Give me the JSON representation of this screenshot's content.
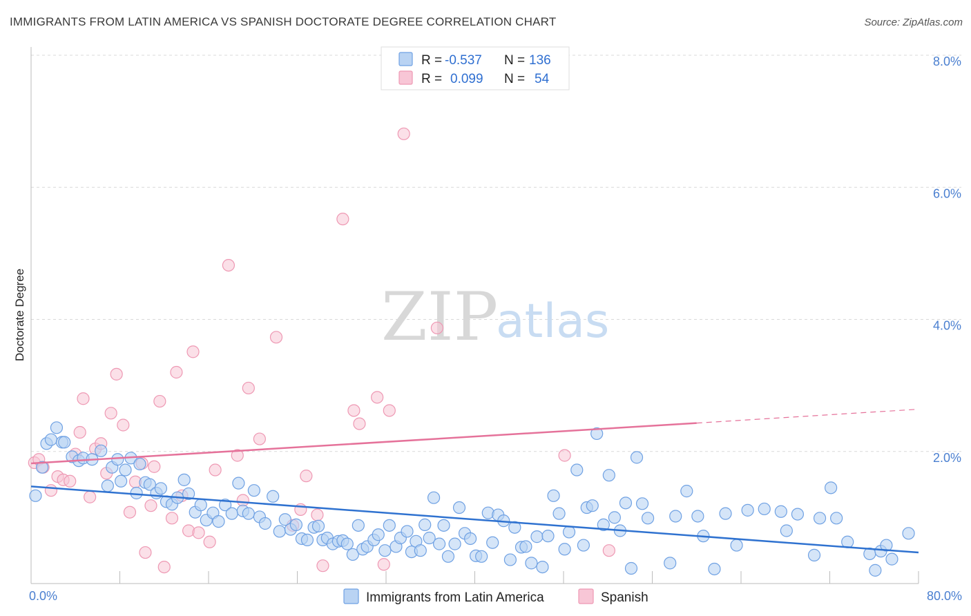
{
  "header": {
    "title": "IMMIGRANTS FROM LATIN AMERICA VS SPANISH DOCTORATE DEGREE CORRELATION CHART",
    "source": "Source: ZipAtlas.com"
  },
  "watermark": {
    "zip": "ZIP",
    "atlas": "atlas"
  },
  "stats": {
    "r_label": "R =",
    "n_label": "N =",
    "rows": [
      {
        "r": "-0.537",
        "n": "136",
        "color": "#7eaee8"
      },
      {
        "r": "0.099",
        "n": "54",
        "color": "#f2a7bf"
      }
    ]
  },
  "colors": {
    "blue_fill": "#b9d3f3",
    "blue_stroke": "#6fa1e3",
    "blue_line": "#2f72d0",
    "pink_fill": "#f8c6d6",
    "pink_stroke": "#ee98b3",
    "pink_line": "#e5729a",
    "grid": "#d8d8d8",
    "axis": "#bbbbbb",
    "tick_text": "#4a7fd0"
  },
  "chart_data": {
    "type": "scatter",
    "title": "IMMIGRANTS FROM LATIN AMERICA VS SPANISH DOCTORATE DEGREE CORRELATION CHART",
    "xlabel": "",
    "ylabel": "Doctorate Degree",
    "xlim": [
      0,
      80
    ],
    "ylim": [
      0,
      8.0
    ],
    "x_tick_labels": [
      "0.0%",
      "80.0%"
    ],
    "y_ticks": [
      2,
      4,
      6,
      8
    ],
    "y_tick_labels": [
      "2.0%",
      "4.0%",
      "6.0%",
      "8.0%"
    ],
    "grid": true,
    "legend_position": "bottom-center",
    "series": [
      {
        "name": "Immigrants from Latin America",
        "color": "#6fa1e3",
        "trend": {
          "x": [
            0,
            80
          ],
          "y": [
            1.47,
            0.47
          ]
        },
        "points": [
          [
            0.4,
            1.33
          ],
          [
            1.0,
            1.76
          ],
          [
            1.4,
            2.12
          ],
          [
            1.8,
            2.18
          ],
          [
            2.3,
            2.36
          ],
          [
            2.8,
            2.14
          ],
          [
            3.0,
            2.14
          ],
          [
            3.7,
            1.92
          ],
          [
            4.3,
            1.86
          ],
          [
            4.7,
            1.9
          ],
          [
            5.5,
            1.88
          ],
          [
            6.3,
            2.01
          ],
          [
            6.9,
            1.48
          ],
          [
            7.3,
            1.76
          ],
          [
            7.8,
            1.88
          ],
          [
            8.1,
            1.55
          ],
          [
            8.5,
            1.72
          ],
          [
            9.0,
            1.9
          ],
          [
            9.5,
            1.37
          ],
          [
            9.8,
            1.81
          ],
          [
            10.3,
            1.53
          ],
          [
            10.7,
            1.5
          ],
          [
            11.3,
            1.37
          ],
          [
            11.7,
            1.44
          ],
          [
            12.2,
            1.24
          ],
          [
            12.7,
            1.2
          ],
          [
            13.2,
            1.3
          ],
          [
            13.8,
            1.57
          ],
          [
            14.2,
            1.36
          ],
          [
            14.8,
            1.08
          ],
          [
            15.3,
            1.19
          ],
          [
            15.8,
            0.96
          ],
          [
            16.4,
            1.07
          ],
          [
            16.9,
            0.94
          ],
          [
            17.5,
            1.19
          ],
          [
            18.1,
            1.06
          ],
          [
            18.7,
            1.52
          ],
          [
            19.1,
            1.1
          ],
          [
            19.6,
            1.06
          ],
          [
            20.1,
            1.41
          ],
          [
            20.6,
            1.01
          ],
          [
            21.1,
            0.91
          ],
          [
            21.8,
            1.32
          ],
          [
            22.4,
            0.79
          ],
          [
            22.9,
            0.97
          ],
          [
            23.4,
            0.82
          ],
          [
            23.9,
            0.89
          ],
          [
            24.4,
            0.68
          ],
          [
            24.9,
            0.66
          ],
          [
            25.5,
            0.85
          ],
          [
            25.9,
            0.87
          ],
          [
            26.3,
            0.66
          ],
          [
            26.7,
            0.69
          ],
          [
            27.2,
            0.6
          ],
          [
            27.7,
            0.64
          ],
          [
            28.1,
            0.65
          ],
          [
            28.5,
            0.6
          ],
          [
            29.0,
            0.44
          ],
          [
            29.5,
            0.88
          ],
          [
            29.9,
            0.52
          ],
          [
            30.3,
            0.56
          ],
          [
            30.9,
            0.66
          ],
          [
            31.3,
            0.74
          ],
          [
            31.9,
            0.5
          ],
          [
            32.3,
            0.88
          ],
          [
            32.9,
            0.56
          ],
          [
            33.3,
            0.69
          ],
          [
            33.9,
            0.79
          ],
          [
            34.3,
            0.48
          ],
          [
            34.7,
            0.64
          ],
          [
            35.1,
            0.5
          ],
          [
            35.5,
            0.89
          ],
          [
            35.9,
            0.69
          ],
          [
            36.3,
            1.3
          ],
          [
            36.8,
            0.6
          ],
          [
            37.2,
            0.88
          ],
          [
            37.6,
            0.41
          ],
          [
            38.2,
            0.6
          ],
          [
            38.6,
            1.15
          ],
          [
            39.1,
            0.76
          ],
          [
            39.6,
            0.68
          ],
          [
            40.1,
            0.42
          ],
          [
            40.6,
            0.41
          ],
          [
            41.2,
            1.07
          ],
          [
            41.6,
            0.62
          ],
          [
            42.1,
            1.04
          ],
          [
            42.6,
            0.95
          ],
          [
            43.2,
            0.36
          ],
          [
            43.6,
            0.85
          ],
          [
            44.2,
            0.55
          ],
          [
            44.6,
            0.56
          ],
          [
            45.1,
            0.31
          ],
          [
            45.6,
            0.71
          ],
          [
            46.1,
            0.25
          ],
          [
            46.6,
            0.72
          ],
          [
            47.1,
            1.33
          ],
          [
            47.6,
            1.06
          ],
          [
            48.1,
            0.52
          ],
          [
            48.5,
            0.78
          ],
          [
            49.2,
            1.72
          ],
          [
            49.8,
            0.58
          ],
          [
            50.1,
            1.15
          ],
          [
            50.6,
            1.18
          ],
          [
            51.0,
            2.27
          ],
          [
            51.6,
            0.89
          ],
          [
            52.1,
            1.64
          ],
          [
            52.6,
            1.0
          ],
          [
            53.1,
            0.8
          ],
          [
            53.6,
            1.22
          ],
          [
            54.1,
            0.23
          ],
          [
            54.6,
            1.91
          ],
          [
            55.1,
            1.21
          ],
          [
            55.6,
            0.99
          ],
          [
            57.6,
            0.31
          ],
          [
            58.1,
            1.02
          ],
          [
            59.1,
            1.4
          ],
          [
            60.1,
            1.02
          ],
          [
            60.6,
            0.72
          ],
          [
            61.6,
            0.22
          ],
          [
            62.6,
            1.06
          ],
          [
            63.6,
            0.58
          ],
          [
            64.6,
            1.11
          ],
          [
            66.1,
            1.13
          ],
          [
            67.6,
            1.09
          ],
          [
            68.1,
            0.8
          ],
          [
            69.1,
            1.05
          ],
          [
            70.6,
            0.43
          ],
          [
            71.1,
            0.99
          ],
          [
            72.1,
            1.45
          ],
          [
            72.6,
            0.99
          ],
          [
            73.6,
            0.63
          ],
          [
            75.6,
            0.45
          ],
          [
            76.1,
            0.2
          ],
          [
            76.6,
            0.49
          ],
          [
            77.1,
            0.58
          ],
          [
            77.6,
            0.37
          ],
          [
            79.1,
            0.76
          ]
        ]
      },
      {
        "name": "Spanish",
        "color": "#ee98b3",
        "trend": {
          "x": [
            0,
            60
          ],
          "y": [
            1.82,
            2.43
          ]
        },
        "trend_dashed": {
          "x": [
            60,
            80
          ],
          "y": [
            2.43,
            2.64
          ]
        },
        "points": [
          [
            0.3,
            1.83
          ],
          [
            0.7,
            1.88
          ],
          [
            1.1,
            1.76
          ],
          [
            1.8,
            1.41
          ],
          [
            2.4,
            1.62
          ],
          [
            2.9,
            1.57
          ],
          [
            3.5,
            1.55
          ],
          [
            4.0,
            1.96
          ],
          [
            4.4,
            2.29
          ],
          [
            4.7,
            2.8
          ],
          [
            5.3,
            1.31
          ],
          [
            5.8,
            2.04
          ],
          [
            6.3,
            2.12
          ],
          [
            6.8,
            1.67
          ],
          [
            7.2,
            2.58
          ],
          [
            7.7,
            3.17
          ],
          [
            8.3,
            2.4
          ],
          [
            8.9,
            1.08
          ],
          [
            9.4,
            1.54
          ],
          [
            10.0,
            1.82
          ],
          [
            10.3,
            0.47
          ],
          [
            10.8,
            1.18
          ],
          [
            11.1,
            1.77
          ],
          [
            11.6,
            2.76
          ],
          [
            12.0,
            0.25
          ],
          [
            12.7,
            0.99
          ],
          [
            13.1,
            3.2
          ],
          [
            13.6,
            1.33
          ],
          [
            14.2,
            0.8
          ],
          [
            14.6,
            3.51
          ],
          [
            15.1,
            0.77
          ],
          [
            16.1,
            0.63
          ],
          [
            16.6,
            1.72
          ],
          [
            17.8,
            4.82
          ],
          [
            18.6,
            1.94
          ],
          [
            19.1,
            1.26
          ],
          [
            19.6,
            2.96
          ],
          [
            20.6,
            2.19
          ],
          [
            22.1,
            3.73
          ],
          [
            23.6,
            0.88
          ],
          [
            24.3,
            1.12
          ],
          [
            24.8,
            1.63
          ],
          [
            25.8,
            1.04
          ],
          [
            26.3,
            0.27
          ],
          [
            28.1,
            5.52
          ],
          [
            29.1,
            2.62
          ],
          [
            29.6,
            2.42
          ],
          [
            31.2,
            2.82
          ],
          [
            31.8,
            0.29
          ],
          [
            32.3,
            2.62
          ],
          [
            33.6,
            6.81
          ],
          [
            36.6,
            3.87
          ],
          [
            48.1,
            1.94
          ],
          [
            52.1,
            0.5
          ]
        ]
      }
    ]
  },
  "legend": {
    "items": [
      {
        "label": "Immigrants from Latin America"
      },
      {
        "label": "Spanish"
      }
    ]
  }
}
